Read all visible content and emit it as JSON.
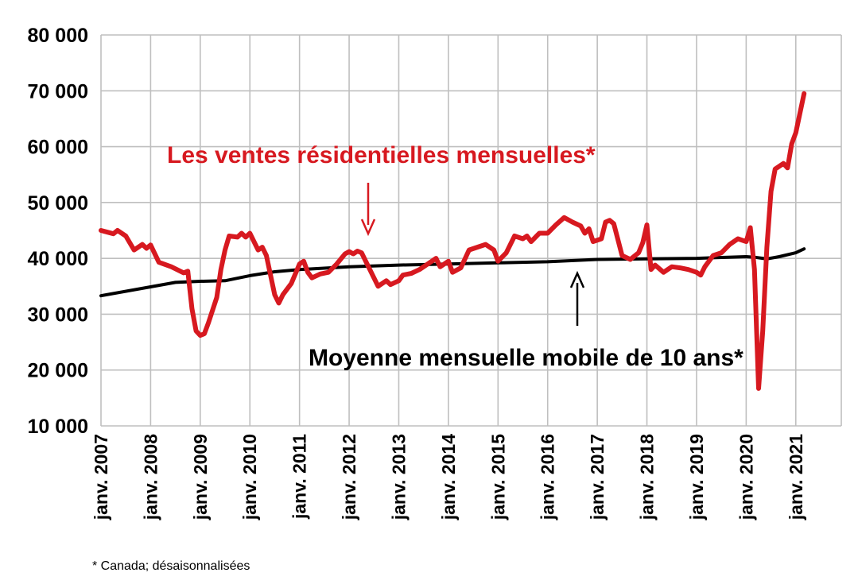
{
  "chart_data": {
    "type": "line",
    "x_start": "2007-01",
    "x_end": "2021-12",
    "ylim": [
      10000,
      80000
    ],
    "yticks": [
      {
        "value": 10000,
        "label": "10 000"
      },
      {
        "value": 20000,
        "label": "20 000"
      },
      {
        "value": 30000,
        "label": "30 000"
      },
      {
        "value": 40000,
        "label": "40 000"
      },
      {
        "value": 50000,
        "label": "50 000"
      },
      {
        "value": 60000,
        "label": "60 000"
      },
      {
        "value": 70000,
        "label": "70 000"
      },
      {
        "value": 80000,
        "label": "80 000"
      }
    ],
    "xticks": [
      {
        "year": 2007,
        "label": "janv. 2007"
      },
      {
        "year": 2008,
        "label": "janv. 2008"
      },
      {
        "year": 2009,
        "label": "janv. 2009"
      },
      {
        "year": 2010,
        "label": "janv. 2010"
      },
      {
        "year": 2011,
        "label": "janv. 2011"
      },
      {
        "year": 2012,
        "label": "janv. 2012"
      },
      {
        "year": 2013,
        "label": "janv. 2013"
      },
      {
        "year": 2014,
        "label": "janv. 2014"
      },
      {
        "year": 2015,
        "label": "janv. 2015"
      },
      {
        "year": 2016,
        "label": "janv. 2016"
      },
      {
        "year": 2017,
        "label": "janv. 2017"
      },
      {
        "year": 2018,
        "label": "janv. 2018"
      },
      {
        "year": 2019,
        "label": "janv. 2019"
      },
      {
        "year": 2020,
        "label": "janv. 2020"
      },
      {
        "year": 2021,
        "label": "janv. 2021"
      }
    ],
    "grid": true,
    "series": [
      {
        "name": "Les ventes résidentielles mensuelles*",
        "color": "#d71920",
        "points": [
          [
            "2007-01",
            45000
          ],
          [
            "2007-04",
            44400
          ],
          [
            "2007-05",
            45000
          ],
          [
            "2007-07",
            44000
          ],
          [
            "2007-09",
            41500
          ],
          [
            "2007-11",
            42500
          ],
          [
            "2007-12",
            41800
          ],
          [
            "2008-01",
            42400
          ],
          [
            "2008-03",
            39300
          ],
          [
            "2008-06",
            38500
          ],
          [
            "2008-09",
            37400
          ],
          [
            "2008-10",
            37700
          ],
          [
            "2008-11",
            31000
          ],
          [
            "2008-12",
            27000
          ],
          [
            "2009-01",
            26200
          ],
          [
            "2009-02",
            26500
          ],
          [
            "2009-03",
            28500
          ],
          [
            "2009-05",
            33000
          ],
          [
            "2009-06",
            38000
          ],
          [
            "2009-07",
            41500
          ],
          [
            "2009-08",
            44000
          ],
          [
            "2009-10",
            43800
          ],
          [
            "2009-11",
            44500
          ],
          [
            "2009-12",
            43800
          ],
          [
            "2010-01",
            44500
          ],
          [
            "2010-03",
            41500
          ],
          [
            "2010-04",
            42000
          ],
          [
            "2010-05",
            40500
          ],
          [
            "2010-07",
            33500
          ],
          [
            "2010-08",
            32000
          ],
          [
            "2010-09",
            33500
          ],
          [
            "2010-11",
            35500
          ],
          [
            "2011-01",
            39000
          ],
          [
            "2011-02",
            39500
          ],
          [
            "2011-03",
            37500
          ],
          [
            "2011-04",
            36500
          ],
          [
            "2011-06",
            37200
          ],
          [
            "2011-08",
            37500
          ],
          [
            "2011-10",
            39000
          ],
          [
            "2011-12",
            40800
          ],
          [
            "2012-01",
            41200
          ],
          [
            "2012-02",
            40800
          ],
          [
            "2012-03",
            41300
          ],
          [
            "2012-04",
            41000
          ],
          [
            "2012-05",
            39500
          ],
          [
            "2012-06",
            38000
          ],
          [
            "2012-08",
            35000
          ],
          [
            "2012-10",
            36000
          ],
          [
            "2012-11",
            35300
          ],
          [
            "2013-01",
            36000
          ],
          [
            "2013-02",
            37000
          ],
          [
            "2013-04",
            37300
          ],
          [
            "2013-06",
            38000
          ],
          [
            "2013-08",
            39000
          ],
          [
            "2013-10",
            40000
          ],
          [
            "2013-11",
            38500
          ],
          [
            "2014-01",
            39500
          ],
          [
            "2014-02",
            37500
          ],
          [
            "2014-04",
            38300
          ],
          [
            "2014-06",
            41500
          ],
          [
            "2014-08",
            42000
          ],
          [
            "2014-10",
            42500
          ],
          [
            "2014-12",
            41500
          ],
          [
            "2015-01",
            39500
          ],
          [
            "2015-03",
            41000
          ],
          [
            "2015-05",
            44000
          ],
          [
            "2015-07",
            43500
          ],
          [
            "2015-08",
            44000
          ],
          [
            "2015-09",
            43000
          ],
          [
            "2015-11",
            44500
          ],
          [
            "2016-01",
            44500
          ],
          [
            "2016-03",
            46000
          ],
          [
            "2016-05",
            47300
          ],
          [
            "2016-07",
            46500
          ],
          [
            "2016-09",
            45800
          ],
          [
            "2016-10",
            44500
          ],
          [
            "2016-11",
            45300
          ],
          [
            "2016-12",
            43000
          ],
          [
            "2017-02",
            43500
          ],
          [
            "2017-03",
            46500
          ],
          [
            "2017-04",
            46800
          ],
          [
            "2017-05",
            46200
          ],
          [
            "2017-07",
            40500
          ],
          [
            "2017-09",
            39800
          ],
          [
            "2017-11",
            41000
          ],
          [
            "2017-12",
            42800
          ],
          [
            "2018-01",
            46000
          ],
          [
            "2018-02",
            38000
          ],
          [
            "2018-03",
            38800
          ],
          [
            "2018-05",
            37500
          ],
          [
            "2018-07",
            38500
          ],
          [
            "2018-09",
            38300
          ],
          [
            "2018-11",
            38000
          ],
          [
            "2019-01",
            37500
          ],
          [
            "2019-02",
            37000
          ],
          [
            "2019-03",
            38500
          ],
          [
            "2019-05",
            40500
          ],
          [
            "2019-07",
            41000
          ],
          [
            "2019-09",
            42500
          ],
          [
            "2019-11",
            43500
          ],
          [
            "2020-01",
            43000
          ],
          [
            "2020-02",
            45500
          ],
          [
            "2020-03",
            38000
          ],
          [
            "2020-04",
            16700
          ],
          [
            "2020-05",
            27000
          ],
          [
            "2020-06",
            42000
          ],
          [
            "2020-07",
            52000
          ],
          [
            "2020-08",
            56000
          ],
          [
            "2020-10",
            57000
          ],
          [
            "2020-11",
            56200
          ],
          [
            "2020-12",
            60500
          ],
          [
            "2021-01",
            62500
          ],
          [
            "2021-02",
            66000
          ],
          [
            "2021-03",
            69500
          ]
        ]
      },
      {
        "name": "Moyenne mensuelle mobile de 10 ans*",
        "color": "#000000",
        "points": [
          [
            "2007-01",
            33300
          ],
          [
            "2008-01",
            34900
          ],
          [
            "2008-07",
            35700
          ],
          [
            "2009-01",
            35900
          ],
          [
            "2009-07",
            36000
          ],
          [
            "2010-01",
            36900
          ],
          [
            "2010-07",
            37600
          ],
          [
            "2011-01",
            38000
          ],
          [
            "2012-01",
            38500
          ],
          [
            "2013-01",
            38800
          ],
          [
            "2014-01",
            39000
          ],
          [
            "2015-01",
            39200
          ],
          [
            "2016-01",
            39400
          ],
          [
            "2017-01",
            39800
          ],
          [
            "2018-01",
            39900
          ],
          [
            "2019-01",
            40000
          ],
          [
            "2020-01",
            40300
          ],
          [
            "2020-03",
            40200
          ],
          [
            "2020-05",
            40000
          ],
          [
            "2020-06",
            39900
          ],
          [
            "2020-09",
            40300
          ],
          [
            "2021-01",
            41000
          ],
          [
            "2021-03",
            41700
          ]
        ]
      }
    ],
    "annotations": [
      {
        "text": "Les ventes résidentielles mensuelles*",
        "color": "#d71920"
      },
      {
        "text": "Moyenne mensuelle mobile de 10 ans*",
        "color": "#000000"
      }
    ],
    "footnote": "* Canada; désaisonnalisées"
  }
}
